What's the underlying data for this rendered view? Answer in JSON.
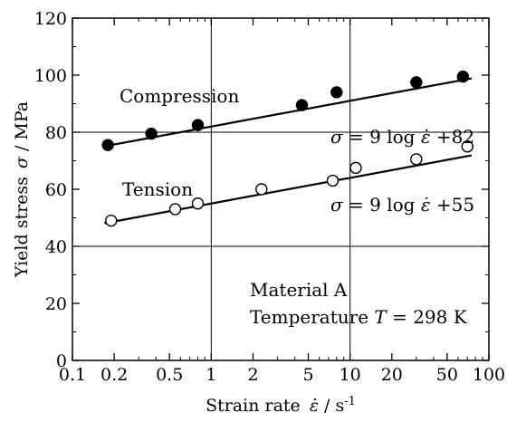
{
  "chart_data": {
    "type": "scatter",
    "xlabel_text": "Strain rate",
    "xlabel_symbol": "ε̇",
    "xlabel_unit_prefix": " / s",
    "xlabel_unit_exp": "-1",
    "ylabel_text": "Yield stress",
    "ylabel_symbol": "σ",
    "ylabel_unit": " / MPa",
    "x_scale": "log",
    "xlim": [
      0.1,
      100
    ],
    "ylim": [
      0,
      120
    ],
    "x_ticks": [
      0.1,
      0.2,
      0.5,
      1,
      2,
      5,
      10,
      20,
      50,
      100
    ],
    "x_tick_labels": [
      "0.1",
      "0.2",
      "0.5",
      "1",
      "2",
      "5",
      "10",
      "20",
      "50",
      "100"
    ],
    "y_ticks": [
      0,
      20,
      40,
      60,
      80,
      100,
      120
    ],
    "y_tick_labels": [
      "0",
      "20",
      "40",
      "60",
      "80",
      "100",
      "120"
    ],
    "grid": {
      "x_lines": [
        1,
        10
      ],
      "y_lines": [
        40,
        80
      ]
    },
    "series": [
      {
        "name": "Compression",
        "marker": "filled-circle",
        "x": [
          0.18,
          0.37,
          0.8,
          4.5,
          8,
          30,
          65
        ],
        "y": [
          75.5,
          79.5,
          82.5,
          89.5,
          94,
          97.5,
          99.5
        ],
        "fit": {
          "slope": 9,
          "intercept": 82,
          "x_range": [
            0.17,
            75
          ]
        },
        "equation": {
          "symbol": "σ",
          "eq_mid": " = 9 log ",
          "rate": "ε̇",
          "eq_end": " +82"
        }
      },
      {
        "name": "Tension",
        "marker": "open-circle",
        "x": [
          0.19,
          0.55,
          0.8,
          2.3,
          7.5,
          11,
          30,
          70
        ],
        "y": [
          49,
          53,
          55,
          60,
          63,
          67.5,
          70.5,
          75
        ],
        "fit": {
          "slope": 9,
          "intercept": 55,
          "x_range": [
            0.17,
            75
          ]
        },
        "equation": {
          "symbol": "σ",
          "eq_mid": " = 9 log ",
          "rate": "ε̇",
          "eq_end": " +55"
        }
      }
    ],
    "annotations": {
      "line1": "Material A",
      "line2_prefix": "Temperature ",
      "line2_symbol": "T",
      "line2_value": " = 298 K"
    }
  }
}
